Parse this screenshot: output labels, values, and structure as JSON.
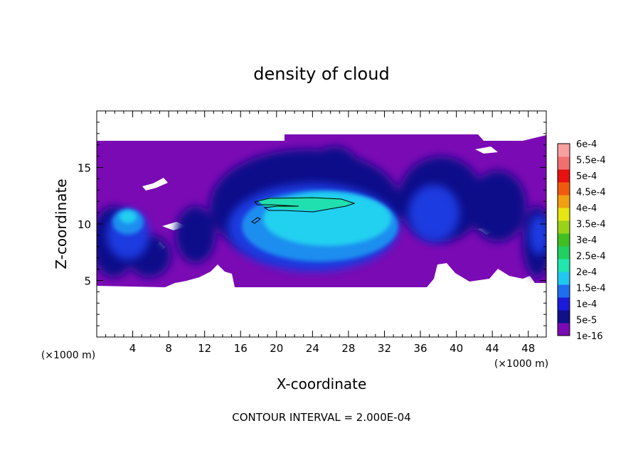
{
  "chart_data": {
    "type": "heatmap",
    "title": "density of cloud",
    "xlabel": "X-coordinate",
    "ylabel": "Z-coordinate",
    "x_unit": "(×1000 m)",
    "footer": "CONTOUR INTERVAL = 2.000E-04",
    "xlim": [
      0,
      50
    ],
    "ylim": [
      0,
      20
    ],
    "x_ticks": [
      4,
      8,
      12,
      16,
      20,
      24,
      28,
      32,
      36,
      40,
      44,
      48
    ],
    "y_ticks": [
      5,
      10,
      15
    ],
    "legend_labels": [
      "1e-16",
      "5e-5",
      "1e-4",
      "1.5e-4",
      "2e-4",
      "2.5e-4",
      "3e-4",
      "3.5e-4",
      "4e-4",
      "4.5e-4",
      "5e-4",
      "5.5e-4",
      "6e-4"
    ],
    "legend_colors": [
      "#7a0ab4",
      "#10108a",
      "#1a1ad8",
      "#1e6ef0",
      "#20c8f0",
      "#20e6b0",
      "#20d060",
      "#40c020",
      "#9ad21a",
      "#e6e610",
      "#f0a010",
      "#f05a10",
      "#e81010",
      "#f07070",
      "#f8a0a0"
    ],
    "contour_interval": 0.0002,
    "cloud_layer_z": [
      4.5,
      17.3
    ],
    "max_value_region": {
      "x": [
        18,
        29
      ],
      "z": [
        11.2,
        12.2
      ],
      "value": 0.0002
    }
  }
}
